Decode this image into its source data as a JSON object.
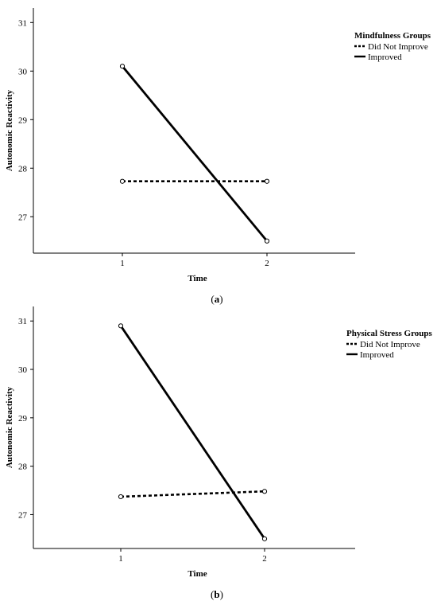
{
  "chart_data": [
    {
      "type": "line",
      "panel_label": "(a)",
      "x": [
        1,
        2
      ],
      "xticks": [
        1,
        2
      ],
      "xlabel": "Time",
      "ylabel": "Autonomic Reactivity",
      "ylim": [
        26.25,
        31.3
      ],
      "yticks": [
        27,
        28,
        29,
        30,
        31
      ],
      "grid": false,
      "legend_title": "Mindfulness Groups",
      "legend_position": "top-right",
      "series": [
        {
          "name": "Did Not Improve",
          "style": "dashed",
          "values": [
            27.73,
            27.73
          ]
        },
        {
          "name": "Improved",
          "style": "solid",
          "values": [
            30.1,
            26.5
          ]
        }
      ]
    },
    {
      "type": "line",
      "panel_label": "(b)",
      "x": [
        1,
        2
      ],
      "xticks": [
        1,
        2
      ],
      "xlabel": "Time",
      "ylabel": "Autonomic Reactivity",
      "ylim": [
        26.3,
        31.3
      ],
      "yticks": [
        27,
        28,
        29,
        30,
        31
      ],
      "grid": false,
      "legend_title": "Physical Stress Groups",
      "legend_position": "top-right",
      "series": [
        {
          "name": "Did Not Improve",
          "style": "dashed",
          "values": [
            27.37,
            27.48
          ]
        },
        {
          "name": "Improved",
          "style": "solid",
          "values": [
            30.9,
            26.5
          ]
        }
      ]
    }
  ]
}
